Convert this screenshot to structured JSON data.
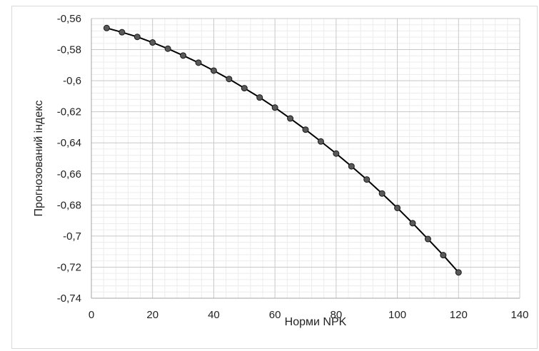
{
  "chart_data": {
    "type": "line",
    "xlabel": "Норми NPK",
    "ylabel": "Прогнозований індекс",
    "xlim": [
      0,
      140
    ],
    "ylim": [
      -0.74,
      -0.56
    ],
    "x_ticks": [
      0,
      20,
      40,
      60,
      80,
      100,
      120,
      140
    ],
    "y_ticks": [
      -0.56,
      -0.58,
      -0.6,
      -0.62,
      -0.64,
      -0.66,
      -0.68,
      -0.7,
      -0.72,
      -0.74
    ],
    "x_tick_labels": [
      "0",
      "20",
      "40",
      "60",
      "80",
      "100",
      "120",
      "140"
    ],
    "y_tick_labels": [
      "-0,56",
      "-0,58",
      "-0,6",
      "-0,62",
      "-0,64",
      "-0,66",
      "-0,68",
      "-0,7",
      "-0,72",
      "-0,74"
    ],
    "grid": {
      "major": true,
      "minor": true
    },
    "legend": "none",
    "series": [
      {
        "x": [
          5,
          10,
          15,
          20,
          25,
          30,
          35,
          40,
          45,
          50,
          55,
          60,
          65,
          70,
          75,
          80,
          85,
          90,
          95,
          100,
          105,
          110,
          115,
          120
        ],
        "y": [
          -0.5661,
          -0.5688,
          -0.5718,
          -0.5754,
          -0.5794,
          -0.5838,
          -0.5884,
          -0.5935,
          -0.5989,
          -0.6048,
          -0.6108,
          -0.6173,
          -0.6243,
          -0.6315,
          -0.6391,
          -0.6469,
          -0.6551,
          -0.6636,
          -0.6726,
          -0.6819,
          -0.6917,
          -0.7019,
          -0.7123,
          -0.7234
        ],
        "color": "#000000",
        "marker_color": "#595959"
      }
    ]
  }
}
